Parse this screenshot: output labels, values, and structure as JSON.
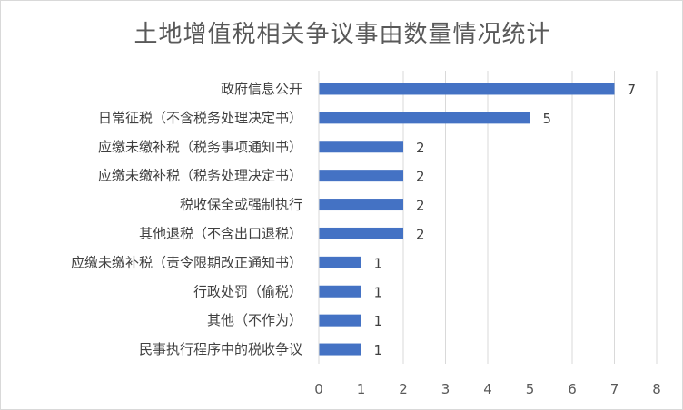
{
  "chart_data": {
    "type": "bar",
    "orientation": "horizontal",
    "title": "土地增值税相关争议事由数量情况统计",
    "categories": [
      "政府信息公开",
      "日常征税（不含税务处理决定书）",
      "应缴未缴补税（税务事项通知书）",
      "应缴未缴补税（税务处理决定书）",
      "税收保全或强制执行",
      "其他退税（不含出口退税）",
      "应缴未缴补税（责令限期改正通知书）",
      "行政处罚（偷税）",
      "其他（不作为）",
      "民事执行程序中的税收争议"
    ],
    "values": [
      7,
      5,
      2,
      2,
      2,
      2,
      1,
      1,
      1,
      1
    ],
    "xlim": [
      0,
      8
    ],
    "xticks": [
      0,
      1,
      2,
      3,
      4,
      5,
      6,
      7,
      8
    ],
    "grid": true,
    "legend": "none",
    "bar_color": "#4472c4"
  }
}
